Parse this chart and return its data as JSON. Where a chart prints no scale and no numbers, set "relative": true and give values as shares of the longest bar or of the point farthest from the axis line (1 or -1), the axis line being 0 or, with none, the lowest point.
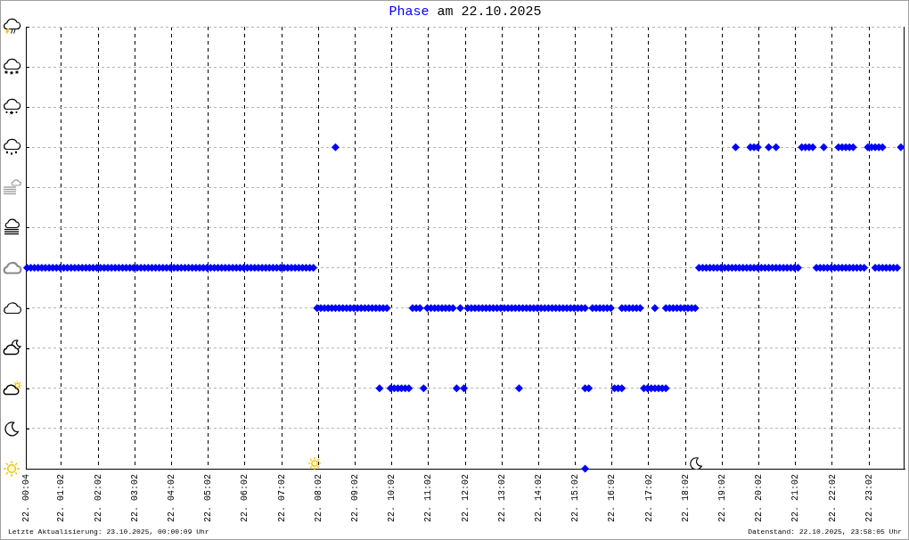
{
  "chart_data": {
    "type": "scatter",
    "title": "am 22.10.2025",
    "relative": true,
    "x": [
      "2025-10-22T00:06",
      "2025-10-22T00:12",
      "2025-10-22T00:18",
      "2025-10-22T00:24",
      "2025-10-22T00:30",
      "2025-10-22T00:36",
      "2025-10-22T00:42",
      "2025-10-22T00:48",
      "2025-10-22T00:54",
      "2025-10-22T01:00",
      "2025-10-22T01:06",
      "2025-10-22T01:12",
      "2025-10-22T01:18",
      "2025-10-22T01:24",
      "2025-10-22T01:30",
      "2025-10-22T01:36",
      "2025-10-22T01:42",
      "2025-10-22T01:48",
      "2025-10-22T01:54",
      "2025-10-22T02:00",
      "2025-10-22T02:06",
      "2025-10-22T02:12",
      "2025-10-22T02:18",
      "2025-10-22T02:24",
      "2025-10-22T02:30",
      "2025-10-22T02:36",
      "2025-10-22T02:42",
      "2025-10-22T02:48",
      "2025-10-22T02:54",
      "2025-10-22T03:00",
      "2025-10-22T03:06",
      "2025-10-22T03:12",
      "2025-10-22T03:18",
      "2025-10-22T03:24",
      "2025-10-22T03:30",
      "2025-10-22T03:36",
      "2025-10-22T03:42",
      "2025-10-22T03:48",
      "2025-10-22T03:54",
      "2025-10-22T04:00",
      "2025-10-22T04:06",
      "2025-10-22T04:12",
      "2025-10-22T04:18",
      "2025-10-22T04:24",
      "2025-10-22T04:30",
      "2025-10-22T04:36",
      "2025-10-22T04:42",
      "2025-10-22T04:48",
      "2025-10-22T04:54",
      "2025-10-22T05:00",
      "2025-10-22T05:06",
      "2025-10-22T05:12",
      "2025-10-22T05:18",
      "2025-10-22T05:24",
      "2025-10-22T05:30",
      "2025-10-22T05:36",
      "2025-10-22T05:42",
      "2025-10-22T05:48",
      "2025-10-22T05:54",
      "2025-10-22T06:00",
      "2025-10-22T06:06",
      "2025-10-22T06:12",
      "2025-10-22T06:18",
      "2025-10-22T06:24",
      "2025-10-22T06:30",
      "2025-10-22T06:36",
      "2025-10-22T06:42",
      "2025-10-22T06:48",
      "2025-10-22T06:54",
      "2025-10-22T07:00",
      "2025-10-22T07:06",
      "2025-10-22T07:12",
      "2025-10-22T07:18",
      "2025-10-22T07:24",
      "2025-10-22T07:30",
      "2025-10-22T07:36",
      "2025-10-22T07:42",
      "2025-10-22T07:48",
      "2025-10-22T07:54",
      "2025-10-22T08:00",
      "2025-10-22T08:06",
      "2025-10-22T08:12",
      "2025-10-22T08:18",
      "2025-10-22T08:24",
      "2025-10-22T08:30",
      "2025-10-22T08:30",
      "2025-10-22T08:36",
      "2025-10-22T08:42",
      "2025-10-22T08:48",
      "2025-10-22T08:54",
      "2025-10-22T09:00",
      "2025-10-22T09:06",
      "2025-10-22T09:12",
      "2025-10-22T09:18",
      "2025-10-22T09:24",
      "2025-10-22T09:30",
      "2025-10-22T09:36",
      "2025-10-22T09:42",
      "2025-10-22T09:42",
      "2025-10-22T09:48",
      "2025-10-22T09:54",
      "2025-10-22T10:00",
      "2025-10-22T10:06",
      "2025-10-22T10:12",
      "2025-10-22T10:18",
      "2025-10-22T10:24",
      "2025-10-22T10:30",
      "2025-10-22T10:36",
      "2025-10-22T10:42",
      "2025-10-22T10:48",
      "2025-10-22T10:54",
      "2025-10-22T11:00",
      "2025-10-22T11:06",
      "2025-10-22T11:12",
      "2025-10-22T11:18",
      "2025-10-22T11:24",
      "2025-10-22T11:30",
      "2025-10-22T11:36",
      "2025-10-22T11:42",
      "2025-10-22T11:48",
      "2025-10-22T11:54",
      "2025-10-22T12:00",
      "2025-10-22T12:06",
      "2025-10-22T12:12",
      "2025-10-22T12:18",
      "2025-10-22T12:24",
      "2025-10-22T12:30",
      "2025-10-22T12:36",
      "2025-10-22T12:42",
      "2025-10-22T12:48",
      "2025-10-22T12:54",
      "2025-10-22T13:00",
      "2025-10-22T13:06",
      "2025-10-22T13:12",
      "2025-10-22T13:18",
      "2025-10-22T13:24",
      "2025-10-22T13:30",
      "2025-10-22T13:30",
      "2025-10-22T13:36",
      "2025-10-22T13:42",
      "2025-10-22T13:48",
      "2025-10-22T13:54",
      "2025-10-22T14:00",
      "2025-10-22T14:06",
      "2025-10-22T14:12",
      "2025-10-22T14:18",
      "2025-10-22T14:24",
      "2025-10-22T14:30",
      "2025-10-22T14:36",
      "2025-10-22T14:42",
      "2025-10-22T14:48",
      "2025-10-22T14:54",
      "2025-10-22T15:00",
      "2025-10-22T15:06",
      "2025-10-22T15:12",
      "2025-10-22T15:18",
      "2025-10-22T15:18",
      "2025-10-22T15:18",
      "2025-10-22T15:24",
      "2025-10-22T15:30",
      "2025-10-22T15:36",
      "2025-10-22T15:42",
      "2025-10-22T15:48",
      "2025-10-22T15:54",
      "2025-10-22T16:00",
      "2025-10-22T16:06",
      "2025-10-22T16:12",
      "2025-10-22T16:18",
      "2025-10-22T16:18",
      "2025-10-22T16:24",
      "2025-10-22T16:30",
      "2025-10-22T16:36",
      "2025-10-22T16:42",
      "2025-10-22T16:48",
      "2025-10-22T16:54",
      "2025-10-22T17:00",
      "2025-10-22T17:06",
      "2025-10-22T17:12",
      "2025-10-22T17:12",
      "2025-10-22T17:18",
      "2025-10-22T17:24",
      "2025-10-22T17:30",
      "2025-10-22T17:30",
      "2025-10-22T17:36",
      "2025-10-22T17:42",
      "2025-10-22T17:48",
      "2025-10-22T17:54",
      "2025-10-22T18:00",
      "2025-10-22T18:06",
      "2025-10-22T18:12",
      "2025-10-22T18:18",
      "2025-10-22T18:24",
      "2025-10-22T18:30",
      "2025-10-22T18:36",
      "2025-10-22T18:42",
      "2025-10-22T18:48",
      "2025-10-22T18:54",
      "2025-10-22T19:00",
      "2025-10-22T19:06",
      "2025-10-22T19:12",
      "2025-10-22T19:18",
      "2025-10-22T19:24",
      "2025-10-22T19:24",
      "2025-10-22T19:30",
      "2025-10-22T19:36",
      "2025-10-22T19:42",
      "2025-10-22T19:48",
      "2025-10-22T19:48",
      "2025-10-22T19:54",
      "2025-10-22T19:54",
      "2025-10-22T20:00",
      "2025-10-22T20:00",
      "2025-10-22T20:06",
      "2025-10-22T20:12",
      "2025-10-22T20:18",
      "2025-10-22T20:18",
      "2025-10-22T20:24",
      "2025-10-22T20:30",
      "2025-10-22T20:30",
      "2025-10-22T20:36",
      "2025-10-22T20:42",
      "2025-10-22T20:48",
      "2025-10-22T20:54",
      "2025-10-22T21:00",
      "2025-10-22T21:06",
      "2025-10-22T21:12",
      "2025-10-22T21:18",
      "2025-10-22T21:24",
      "2025-10-22T21:30",
      "2025-10-22T21:36",
      "2025-10-22T21:42",
      "2025-10-22T21:48",
      "2025-10-22T21:48",
      "2025-10-22T21:54",
      "2025-10-22T22:00",
      "2025-10-22T22:06",
      "2025-10-22T22:12",
      "2025-10-22T22:12",
      "2025-10-22T22:18",
      "2025-10-22T22:18",
      "2025-10-22T22:24",
      "2025-10-22T22:24",
      "2025-10-22T22:30",
      "2025-10-22T22:30",
      "2025-10-22T22:36",
      "2025-10-22T22:36",
      "2025-10-22T22:42",
      "2025-10-22T22:48",
      "2025-10-22T22:54",
      "2025-10-22T23:00",
      "2025-10-22T23:06",
      "2025-10-22T23:12",
      "2025-10-22T23:12",
      "2025-10-22T23:18",
      "2025-10-22T23:18",
      "2025-10-22T23:24",
      "2025-10-22T23:24",
      "2025-10-22T23:30",
      "2025-10-22T23:36",
      "2025-10-22T23:42",
      "2025-10-22T23:48",
      "2025-10-22T23:54"
    ],
    "series": [
      {
        "name": "Phase",
        "color": "#0000ff",
        "values": [
          0.625,
          0.625,
          0.625,
          0.625,
          0.625,
          0.625,
          0.625,
          0.625,
          0.625,
          0.625,
          0.625,
          0.625,
          0.625,
          0.625,
          0.625,
          0.625,
          0.625,
          0.625,
          0.625,
          0.625,
          0.625,
          0.625,
          0.625,
          0.625,
          0.625,
          0.625,
          0.625,
          0.625,
          0.625,
          0.625,
          0.625,
          0.625,
          0.625,
          0.625,
          0.625,
          0.625,
          0.625,
          0.625,
          0.625,
          0.625,
          0.625,
          0.625,
          0.625,
          0.625,
          0.625,
          0.625,
          0.625,
          0.625,
          0.625,
          0.625,
          0.625,
          0.625,
          0.625,
          0.625,
          0.625,
          0.625,
          0.625,
          0.625,
          0.625,
          0.625,
          0.625,
          0.625,
          0.625,
          0.625,
          0.625,
          0.625,
          0.625,
          0.625,
          0.625,
          0.625,
          0.625,
          0.625,
          0.625,
          0.625,
          0.625,
          0.625,
          0.625,
          0.625,
          0.625,
          0.5,
          0.5,
          0.5,
          0.5,
          0.5,
          0.5,
          1,
          0.5,
          0.5,
          0.5,
          0.5,
          0.5,
          0.5,
          0.5,
          0.5,
          0.5,
          0.5,
          0.5,
          0.5,
          0.25,
          0.5,
          0.5,
          0.25,
          0.25,
          0.25,
          0.25,
          0.25,
          0.25,
          0.5,
          0.5,
          0.5,
          0.25,
          0.5,
          0.5,
          0.5,
          0.5,
          0.5,
          0.5,
          0.5,
          0.5,
          0.25,
          0.5,
          0.25,
          0.5,
          0.5,
          0.5,
          0.5,
          0.5,
          0.5,
          0.5,
          0.5,
          0.5,
          0.5,
          0.5,
          0.5,
          0.5,
          0.5,
          0.5,
          0.25,
          0.5,
          0.5,
          0.5,
          0.5,
          0.5,
          0.5,
          0.5,
          0.5,
          0.5,
          0.5,
          0.5,
          0.5,
          0.5,
          0.5,
          0.5,
          0.5,
          0.5,
          0.5,
          0.25,
          0,
          0.25,
          0.5,
          0.5,
          0.5,
          0.5,
          0.5,
          0.5,
          0.25,
          0.25,
          0.25,
          0.5,
          0.5,
          0.5,
          0.5,
          0.5,
          0.5,
          0.25,
          0.25,
          0.25,
          0.25,
          0.5,
          0.25,
          0.25,
          0.25,
          0.5,
          0.5,
          0.5,
          0.5,
          0.5,
          0.5,
          0.5,
          0.5,
          0.5,
          0.625,
          0.625,
          0.625,
          0.625,
          0.625,
          0.625,
          0.625,
          0.625,
          0.625,
          0.625,
          0.625,
          1,
          0.625,
          0.625,
          0.625,
          0.625,
          1,
          0.625,
          1,
          0.625,
          1,
          0.625,
          0.625,
          0.625,
          1,
          0.625,
          0.625,
          1,
          0.625,
          0.625,
          0.625,
          0.625,
          0.625,
          0.625,
          1,
          1,
          1,
          1,
          0.625,
          0.625,
          0.625,
          1,
          0.625,
          0.625,
          0.625,
          0.625,
          1,
          0.625,
          1,
          0.625,
          1,
          0.625,
          1,
          0.625,
          1,
          0.625,
          0.625,
          0.625,
          1,
          1,
          0.625,
          1,
          0.625,
          1,
          0.625,
          1,
          0.625,
          0.625,
          0.625,
          0.625,
          1
        ]
      }
    ],
    "xlim": [
      "2025-10-22T00:04",
      "2025-10-23T00:00"
    ],
    "xticks": [
      {
        "value": "2025-10-22T00:04",
        "label": "22. 00:04"
      },
      {
        "value": "2025-10-22T01:02",
        "label": "22. 01:02"
      },
      {
        "value": "2025-10-22T02:02",
        "label": "22. 02:02"
      },
      {
        "value": "2025-10-22T03:02",
        "label": "22. 03:02"
      },
      {
        "value": "2025-10-22T04:02",
        "label": "22. 04:02"
      },
      {
        "value": "2025-10-22T05:02",
        "label": "22. 05:02"
      },
      {
        "value": "2025-10-22T06:02",
        "label": "22. 06:02"
      },
      {
        "value": "2025-10-22T07:02",
        "label": "22. 07:02"
      },
      {
        "value": "2025-10-22T08:02",
        "label": "22. 08:02"
      },
      {
        "value": "2025-10-22T09:02",
        "label": "22. 09:02"
      },
      {
        "value": "2025-10-22T10:02",
        "label": "22. 10:02"
      },
      {
        "value": "2025-10-22T11:02",
        "label": "22. 11:02"
      },
      {
        "value": "2025-10-22T12:02",
        "label": "22. 12:02"
      },
      {
        "value": "2025-10-22T13:02",
        "label": "22. 13:02"
      },
      {
        "value": "2025-10-22T14:02",
        "label": "22. 14:02"
      },
      {
        "value": "2025-10-22T15:02",
        "label": "22. 15:02"
      },
      {
        "value": "2025-10-22T16:02",
        "label": "22. 16:02"
      },
      {
        "value": "2025-10-22T17:02",
        "label": "22. 17:02"
      },
      {
        "value": "2025-10-22T18:02",
        "label": "22. 18:02"
      },
      {
        "value": "2025-10-22T19:02",
        "label": "22. 19:02"
      },
      {
        "value": "2025-10-22T20:02",
        "label": "22. 20:02"
      },
      {
        "value": "2025-10-22T21:02",
        "label": "22. 21:02"
      },
      {
        "value": "2025-10-22T22:02",
        "label": "22. 22:02"
      },
      {
        "value": "2025-10-22T23:02",
        "label": "22. 23:02"
      }
    ],
    "tick_labels": "x",
    "grid": true,
    "marker": "diamond",
    "annotations": [
      "Letzte Aktualisierung: 23.10.2025, 00:00:09 Uhr",
      "Datenstand: 22.10.2025, 23:58:05 Uhr"
    ]
  }
}
